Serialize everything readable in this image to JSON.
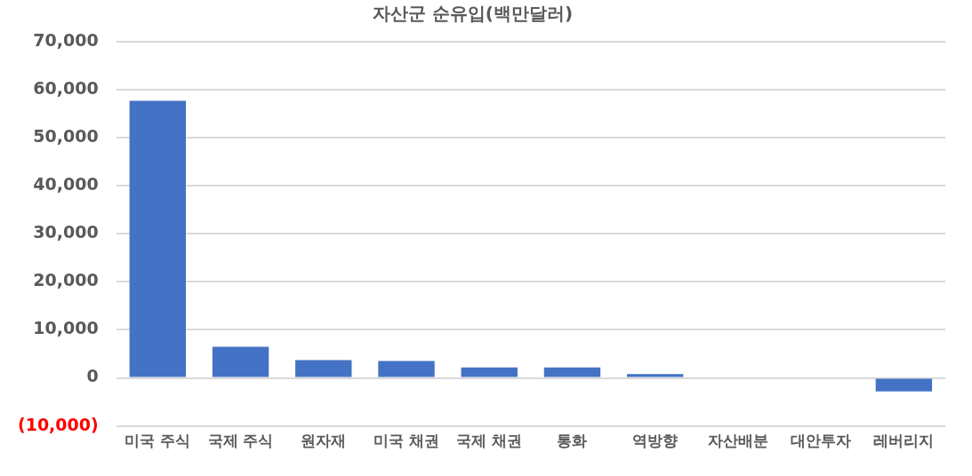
{
  "chart_data": {
    "type": "bar",
    "title": "자산군 순유입(백만달러)",
    "categories": [
      "미국 주식",
      "국제 주식",
      "원자재",
      "미국 채권",
      "국제 채권",
      "통화",
      "역방향",
      "자산배분",
      "대안투자",
      "레버리지"
    ],
    "values": [
      57700,
      6500,
      3700,
      3500,
      2200,
      2200,
      800,
      0,
      0,
      -2800
    ],
    "color": "#4472c4",
    "ylim": [
      -10000,
      70000
    ],
    "yticks": [
      {
        "value": -10000,
        "label": "(10,000)"
      },
      {
        "value": 0,
        "label": "0"
      },
      {
        "value": 10000,
        "label": "10,000"
      },
      {
        "value": 20000,
        "label": "20,000"
      },
      {
        "value": 30000,
        "label": "30,000"
      },
      {
        "value": 40000,
        "label": "40,000"
      },
      {
        "value": 50000,
        "label": "50,000"
      },
      {
        "value": 60000,
        "label": "60,000"
      },
      {
        "value": 70000,
        "label": "70,000"
      }
    ],
    "grid": "y",
    "legend": false
  }
}
